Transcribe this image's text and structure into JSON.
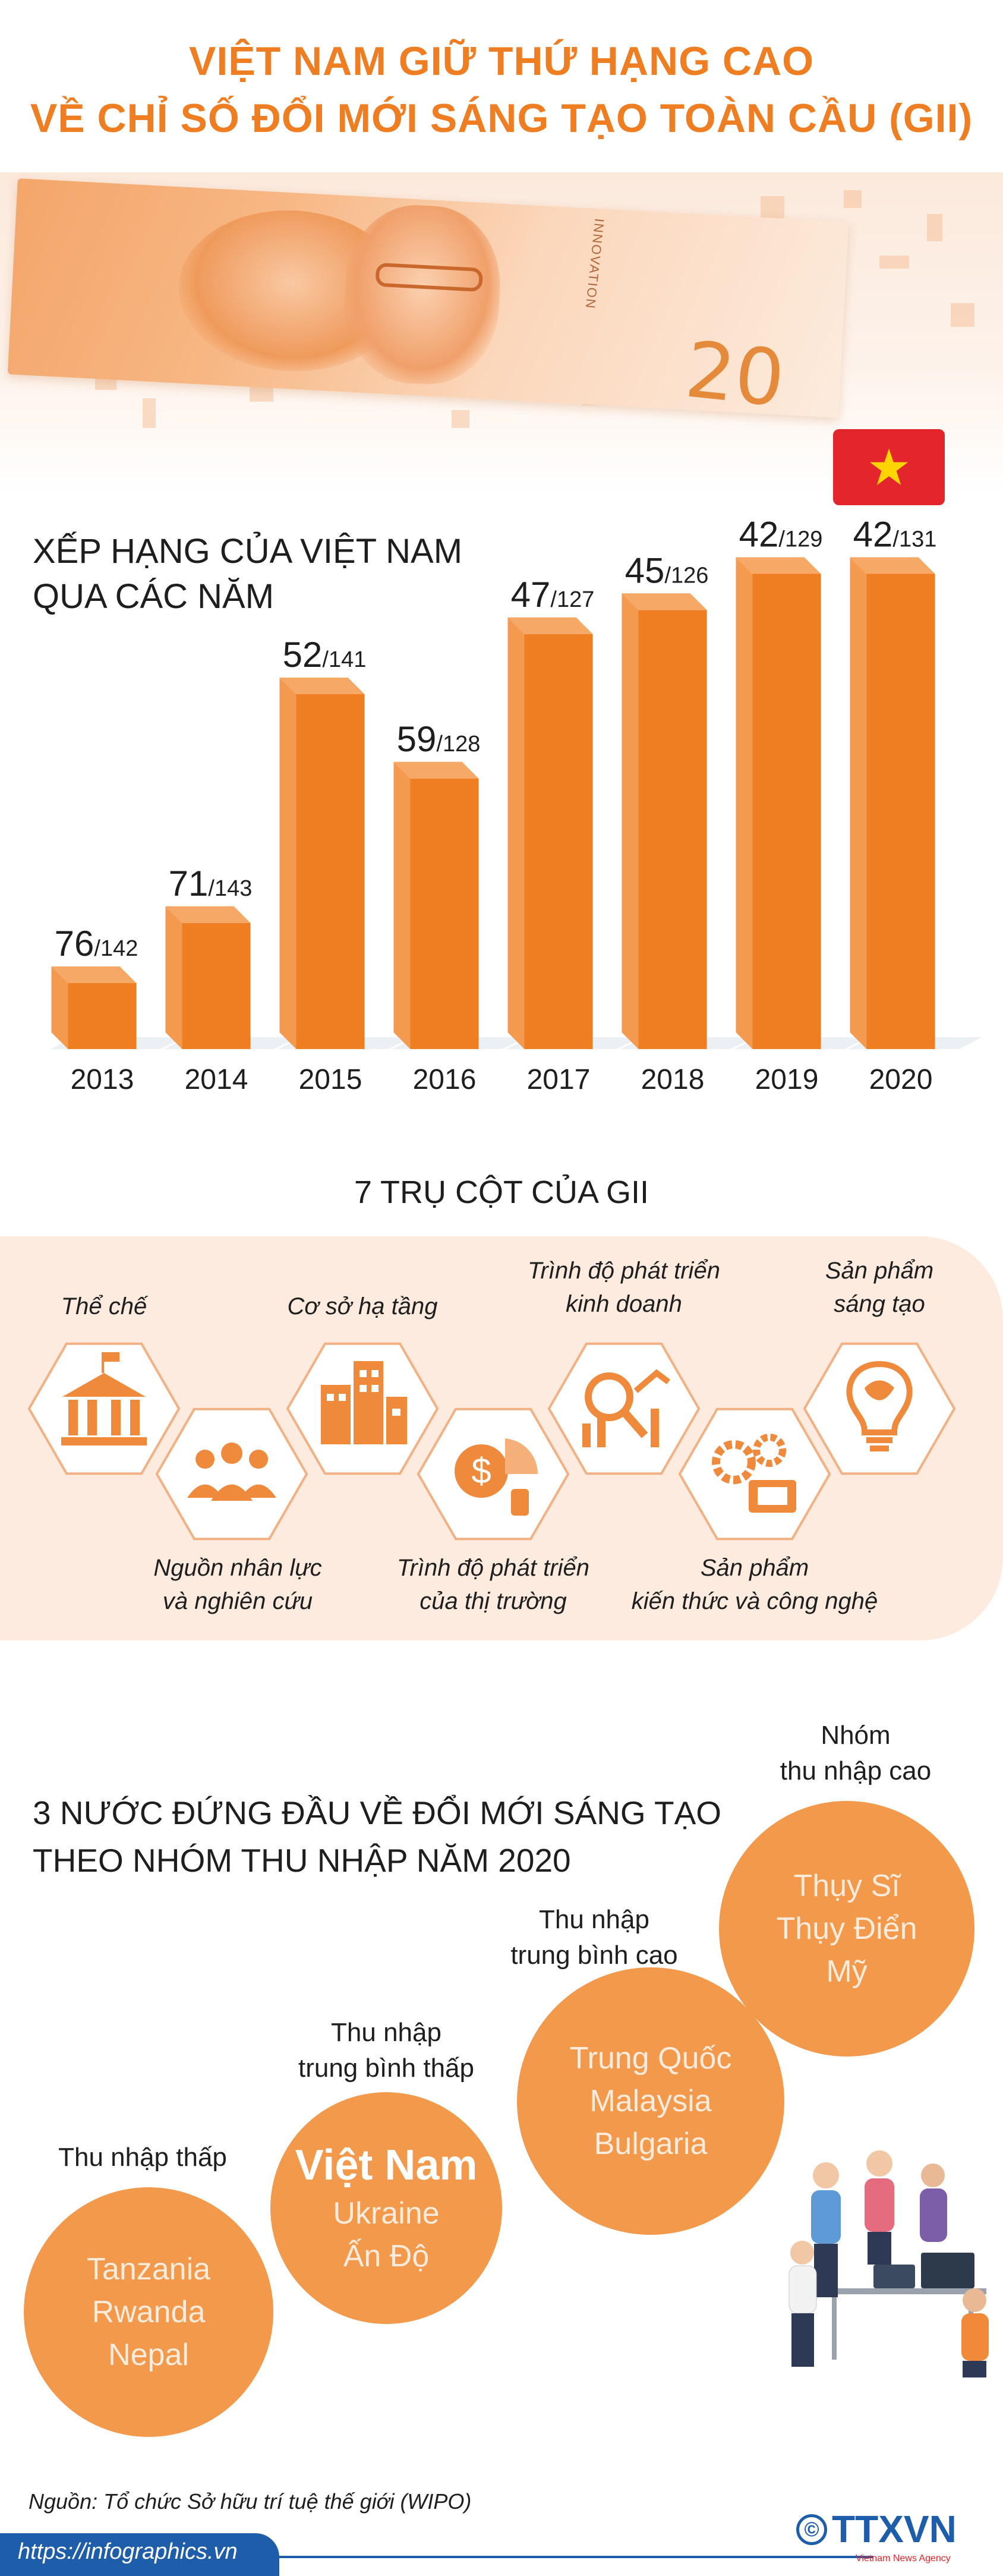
{
  "header": {
    "title_line1": "VIỆT NAM GIỮ THỨ HẠNG CAO",
    "title_line2": "VỀ CHỈ SỐ ĐỔI MỚI SÁNG TẠO TOÀN CẦU (GII)"
  },
  "banner": {
    "note_value": "20",
    "note_text": "INNOVATION"
  },
  "ranking": {
    "title_line1": "XẾP HẠNG CỦA VIỆT NAM",
    "title_line2": "QUA CÁC NĂM"
  },
  "chart_data": {
    "type": "bar",
    "title": "XẾP HẠNG CỦA VIỆT NAM QUA CÁC NĂM",
    "categories": [
      "2013",
      "2014",
      "2015",
      "2016",
      "2017",
      "2018",
      "2019",
      "2020"
    ],
    "values": [
      76,
      71,
      52,
      59,
      47,
      45,
      42,
      42
    ],
    "totals": [
      142,
      143,
      141,
      128,
      127,
      126,
      129,
      131
    ],
    "color": "#ef7d22"
  },
  "pillars": {
    "title": "7 TRỤ CỘT CỦA GII",
    "items": [
      {
        "line1": "Thể chế",
        "line2": "",
        "icon": "institution-building-icon"
      },
      {
        "line1": "Nguồn nhân lực",
        "line2": "và nghiên cứu",
        "icon": "people-icon"
      },
      {
        "line1": "Cơ sở hạ tầng",
        "line2": "",
        "icon": "infrastructure-buildings-icon"
      },
      {
        "line1": "Trình độ phát triển",
        "line2": "của thị trường",
        "icon": "market-money-icon"
      },
      {
        "line1": "Trình độ phát triển",
        "line2": "kinh doanh",
        "icon": "business-growth-icon"
      },
      {
        "line1": "Sản phẩm",
        "line2": "kiến thức và công nghệ",
        "icon": "technology-gears-icon"
      },
      {
        "line1": "Sản phẩm",
        "line2": "sáng tạo",
        "icon": "creative-bulb-icon"
      }
    ]
  },
  "income": {
    "title_line1": "3 NƯỚC ĐỨNG ĐẦU VỀ ĐỔI MỚI SÁNG TẠO",
    "title_line2": "THEO NHÓM THU NHẬP NĂM 2020",
    "groups": [
      {
        "label_line1": "Thu nhập thấp",
        "label_line2": "",
        "countries": [
          "Tanzania",
          "Rwanda",
          "Nepal"
        ]
      },
      {
        "label_line1": "Thu nhập",
        "label_line2": "trung bình thấp",
        "countries": [
          "Việt Nam",
          "Ukraine",
          "Ấn Độ"
        ]
      },
      {
        "label_line1": "Thu nhập",
        "label_line2": "trung bình cao",
        "countries": [
          "Trung Quốc",
          "Malaysia",
          "Bulgaria"
        ]
      },
      {
        "label_line1": "Nhóm",
        "label_line2": "thu nhập cao",
        "countries": [
          "Thụy Sĩ",
          "Thụy Điển",
          "Mỹ"
        ]
      }
    ],
    "circle_color": "#f2994c"
  },
  "footer": {
    "source": "Nguồn: Tổ chức Sở hữu trí tuệ thế giới (WIPO)",
    "url": "https://infographics.vn",
    "copyright_symbol": "©",
    "logo": "TTXVN",
    "agency": "Vietnam News Agency"
  }
}
